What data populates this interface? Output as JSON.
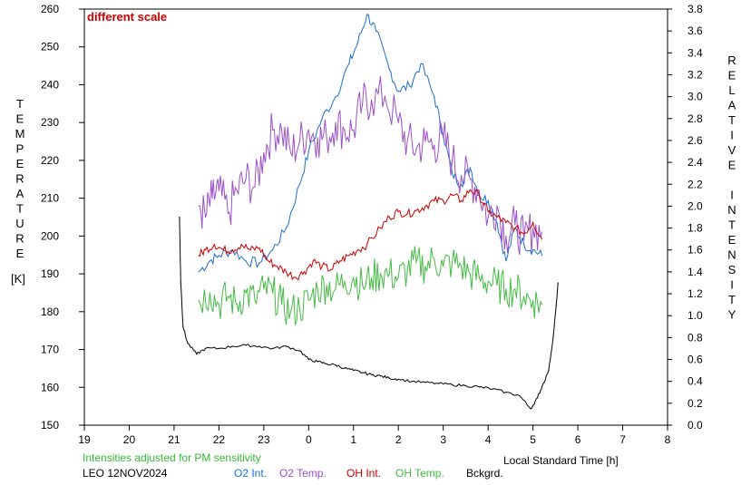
{
  "chart_data": {
    "type": "line",
    "annotation": "different scale",
    "left_axis_title": "TEMPERATURE",
    "left_axis_unit": "[K]",
    "right_axis_title": "RELATIVE INTENSITY",
    "xlabel": "Local Standard Time [h]",
    "footnote": "Intensities adjusted for PM sensitivity",
    "station_date": "LEO 12NOV2024",
    "xlim": [
      19,
      8
    ],
    "ylim_left": [
      150,
      260
    ],
    "ylim_right": [
      0.0,
      3.8
    ],
    "x_ticks": [
      "19",
      "20",
      "21",
      "22",
      "23",
      "0",
      "1",
      "2",
      "3",
      "4",
      "5",
      "6",
      "7",
      "8"
    ],
    "y_left_ticks": [
      "150",
      "160",
      "170",
      "180",
      "190",
      "200",
      "210",
      "220",
      "230",
      "240",
      "250",
      "260"
    ],
    "y_right_ticks": [
      "0.0",
      "0.2",
      "0.4",
      "0.6",
      "0.8",
      "1.0",
      "1.2",
      "1.4",
      "1.6",
      "1.8",
      "2.0",
      "2.2",
      "2.4",
      "2.6",
      "2.8",
      "3.0",
      "3.2",
      "3.4",
      "3.6",
      "3.8"
    ],
    "series": [
      {
        "name": "O2 Int.",
        "color": "#1a6fd0",
        "axis": "right",
        "x": [
          21.55,
          21.8,
          22.0,
          22.3,
          22.6,
          22.9,
          23.2,
          23.5,
          23.8,
          24.0,
          24.3,
          24.6,
          24.9,
          25.1,
          25.3,
          25.5,
          25.8,
          26.0,
          26.25,
          26.5,
          26.8,
          27.0,
          27.2,
          27.4,
          27.6,
          27.8,
          28.0,
          28.2,
          28.4,
          28.6,
          28.8,
          29.0,
          29.2
        ],
        "y": [
          1.4,
          1.5,
          1.55,
          1.6,
          1.5,
          1.48,
          1.6,
          1.8,
          2.2,
          2.5,
          2.8,
          3.0,
          3.3,
          3.5,
          3.75,
          3.6,
          3.25,
          3.05,
          3.1,
          3.3,
          3.0,
          2.65,
          2.3,
          2.2,
          2.35,
          2.1,
          2.05,
          1.85,
          1.5,
          1.8,
          1.65,
          1.6,
          1.55
        ]
      },
      {
        "name": "O2 Temp.",
        "color": "#9b4fcb",
        "axis": "left",
        "x": [
          21.55,
          21.7,
          21.85,
          22.0,
          22.2,
          22.4,
          22.6,
          22.8,
          23.0,
          23.2,
          23.4,
          23.6,
          23.8,
          24.0,
          24.2,
          24.4,
          24.6,
          24.8,
          25.0,
          25.2,
          25.4,
          25.7,
          26.0,
          26.2,
          26.4,
          26.6,
          26.8,
          27.0,
          27.2,
          27.4,
          27.6,
          27.8,
          28.0,
          28.2,
          28.4,
          28.6,
          28.8,
          29.0,
          29.2
        ],
        "y": [
          208,
          205,
          210,
          212,
          206,
          212,
          215,
          213,
          222,
          228,
          228,
          222,
          225,
          228,
          226,
          226,
          230,
          228,
          228,
          235,
          236,
          237,
          230,
          225,
          223,
          225,
          224,
          226,
          220,
          216,
          215,
          212,
          205,
          208,
          200,
          203,
          199,
          202,
          201
        ]
      },
      {
        "name": "OH Int.",
        "color": "#cc0000",
        "axis": "right",
        "x": [
          21.55,
          21.7,
          21.9,
          22.1,
          22.3,
          22.5,
          22.7,
          22.9,
          23.1,
          23.3,
          23.5,
          23.7,
          23.9,
          24.1,
          24.3,
          24.5,
          24.7,
          24.9,
          25.1,
          25.3,
          25.6,
          25.8,
          26.0,
          26.2,
          26.4,
          26.6,
          26.8,
          27.0,
          27.2,
          27.4,
          27.6,
          27.8,
          28.0,
          28.2,
          28.4,
          28.6,
          28.8,
          29.0,
          29.2
        ],
        "y": [
          1.55,
          1.6,
          1.65,
          1.6,
          1.6,
          1.65,
          1.6,
          1.62,
          1.5,
          1.45,
          1.4,
          1.35,
          1.4,
          1.5,
          1.45,
          1.42,
          1.5,
          1.55,
          1.6,
          1.65,
          1.8,
          1.9,
          1.95,
          1.93,
          1.96,
          2.0,
          2.05,
          2.05,
          2.1,
          2.05,
          2.15,
          2.1,
          1.95,
          1.9,
          1.85,
          1.8,
          1.75,
          1.85,
          1.7
        ]
      },
      {
        "name": "OH Temp.",
        "color": "#44bb44",
        "axis": "left",
        "x": [
          21.55,
          21.8,
          22.0,
          22.2,
          22.4,
          22.6,
          22.8,
          23.0,
          23.2,
          23.4,
          23.6,
          23.8,
          24.0,
          24.2,
          24.4,
          24.6,
          24.8,
          25.0,
          25.2,
          25.4,
          25.6,
          25.8,
          26.0,
          26.2,
          26.4,
          26.6,
          26.8,
          27.0,
          27.2,
          27.4,
          27.6,
          27.8,
          28.0,
          28.2,
          28.4,
          28.6,
          28.8,
          29.0,
          29.2
        ],
        "y": [
          183,
          185,
          182,
          184,
          182,
          185,
          183,
          186,
          185,
          182,
          180,
          181,
          183,
          186,
          187,
          186,
          188,
          189,
          187,
          189,
          190,
          190,
          189,
          191,
          193,
          192,
          194,
          192,
          193,
          192,
          190,
          189,
          188,
          187,
          186,
          186,
          184,
          183,
          182
        ]
      },
      {
        "name": "Bckgrd.",
        "color": "#000000",
        "axis": "right",
        "x": [
          21.12,
          21.15,
          21.2,
          21.3,
          21.5,
          21.7,
          22.0,
          22.3,
          22.6,
          22.9,
          23.2,
          23.5,
          23.8,
          24.0,
          24.2,
          24.4,
          24.6,
          24.8,
          25.0,
          25.2,
          25.4,
          25.6,
          25.8,
          26.0,
          26.3,
          26.6,
          26.9,
          27.2,
          27.5,
          27.8,
          28.1,
          28.4,
          28.7,
          28.95,
          29.1,
          29.2,
          29.35,
          29.45,
          29.52,
          29.56
        ],
        "y": [
          1.9,
          1.3,
          0.9,
          0.75,
          0.65,
          0.7,
          0.7,
          0.72,
          0.73,
          0.72,
          0.7,
          0.72,
          0.68,
          0.6,
          0.58,
          0.56,
          0.55,
          0.52,
          0.5,
          0.48,
          0.46,
          0.45,
          0.43,
          0.42,
          0.4,
          0.39,
          0.38,
          0.37,
          0.36,
          0.35,
          0.33,
          0.3,
          0.27,
          0.15,
          0.25,
          0.35,
          0.5,
          0.8,
          1.1,
          1.3
        ]
      }
    ]
  }
}
